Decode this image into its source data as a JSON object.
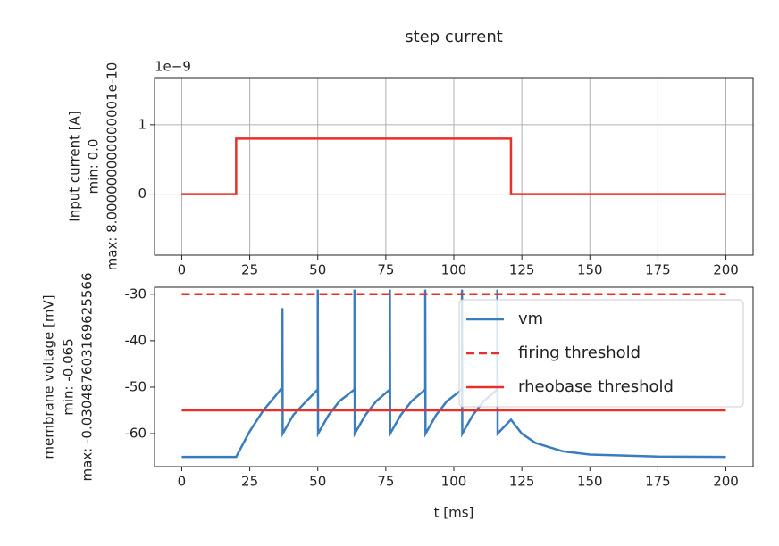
{
  "chart_data": [
    {
      "type": "line",
      "title": "step current",
      "offset_text": "1e−9",
      "ylabel": [
        "Input current [A]",
        "min: 0.0",
        "max: 8.000000000000001e-10"
      ],
      "xlim": [
        -10,
        210
      ],
      "ylim": [
        -0.88,
        1.68
      ],
      "xticks": [
        0,
        25,
        50,
        75,
        100,
        125,
        150,
        175,
        200
      ],
      "yticks": [
        0,
        1
      ],
      "grid": true,
      "series": [
        {
          "color": "#e8302a",
          "style": "solid",
          "x": [
            0,
            20,
            20,
            121,
            121,
            200
          ],
          "values": [
            0,
            0,
            0.8,
            0.8,
            0,
            0
          ]
        }
      ]
    },
    {
      "type": "line",
      "xlabel": "t [ms]",
      "ylabel": [
        "membrane voltage [mV]",
        "min: -0.065",
        "max: -0.030487603169625566"
      ],
      "xlim": [
        -10,
        210
      ],
      "ylim": [
        -67.1,
        -28.5
      ],
      "xticks": [
        0,
        25,
        50,
        75,
        100,
        125,
        150,
        175,
        200
      ],
      "yticks": [
        -30,
        -40,
        -50,
        -60
      ],
      "grid": false,
      "legend": "upper right",
      "series": [
        {
          "name": "vm",
          "color": "#3a7dbf",
          "style": "solid",
          "x": [
            0,
            20,
            25,
            30,
            35,
            37,
            37,
            37.1,
            41,
            45,
            50,
            50,
            50.1,
            54,
            58,
            63.5,
            63.5,
            63.6,
            67.5,
            71.5,
            76.5,
            76.5,
            76.6,
            80.5,
            84.5,
            89.5,
            89.5,
            89.6,
            93.5,
            97.5,
            103,
            103,
            103.1,
            107,
            111,
            116,
            116,
            116.1,
            121,
            125,
            130,
            140,
            150,
            175,
            200
          ],
          "values": [
            -65,
            -65,
            -59.5,
            -55,
            -51.5,
            -50,
            -33,
            -60,
            -56,
            -53.5,
            -50.5,
            -29,
            -60,
            -56,
            -53,
            -50.5,
            -29,
            -60,
            -56,
            -53,
            -50.5,
            -29,
            -60,
            -56,
            -53,
            -50.5,
            -29,
            -60,
            -56,
            -53,
            -50.5,
            -29,
            -60,
            -56,
            -53,
            -50.5,
            -29,
            -60,
            -57,
            -60,
            -62,
            -63.8,
            -64.5,
            -64.95,
            -65
          ]
        },
        {
          "name": "firing threshold",
          "color": "#e8302a",
          "style": "dashed",
          "x": [
            0,
            200
          ],
          "values": [
            -30,
            -30
          ]
        },
        {
          "name": "rheobase threshold",
          "color": "#e8302a",
          "style": "solid",
          "x": [
            0,
            200
          ],
          "values": [
            -55,
            -55
          ]
        }
      ]
    }
  ]
}
